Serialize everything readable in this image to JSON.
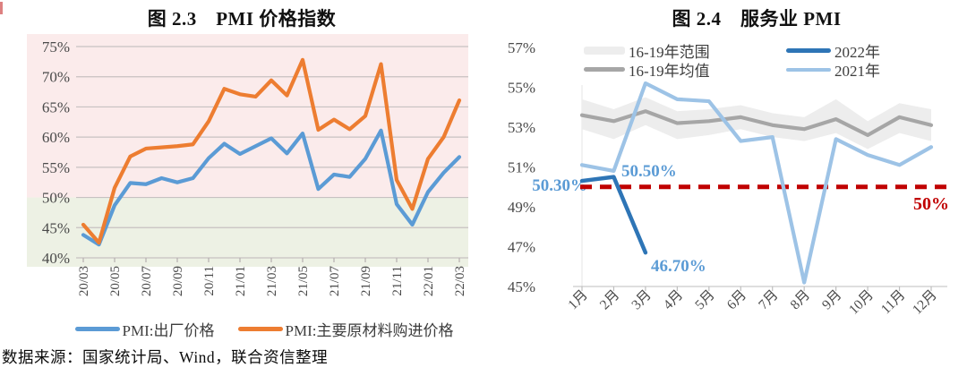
{
  "page": {
    "source": "数据来源：国家统计局、Wind，联合资信整理"
  },
  "chart_data": [
    {
      "type": "line",
      "title": "图 2.3　PMI 价格指数",
      "categories": [
        "20/03",
        "20/04",
        "20/05",
        "20/06",
        "20/07",
        "20/08",
        "20/09",
        "20/10",
        "20/11",
        "20/12",
        "21/01",
        "21/02",
        "21/03",
        "21/04",
        "21/05",
        "21/06",
        "21/07",
        "21/08",
        "21/09",
        "21/10",
        "21/11",
        "21/12",
        "22/01",
        "22/02",
        "22/03"
      ],
      "x_tick_labels": [
        "20/03",
        "20/05",
        "20/07",
        "20/09",
        "20/11",
        "21/01",
        "21/03",
        "21/05",
        "21/07",
        "21/09",
        "21/11",
        "22/01",
        "22/03"
      ],
      "y_ticks": [
        "75%",
        "70%",
        "65%",
        "60%",
        "55%",
        "50%",
        "45%",
        "40%"
      ],
      "ylim": [
        40,
        75
      ],
      "y_tick_step": 5,
      "grid": true,
      "legend_position": "bottom",
      "plot_bands": [
        {
          "from": 50,
          "to": 75,
          "color": "#FBEBEB"
        },
        {
          "from": 40,
          "to": 50,
          "color": "#EDF1E4"
        }
      ],
      "series": [
        {
          "name": "PMI:出厂价格",
          "color": "#5B9BD5",
          "values": [
            43.8,
            42.2,
            48.7,
            52.4,
            52.2,
            53.2,
            52.5,
            53.2,
            56.5,
            58.9,
            57.2,
            58.5,
            59.8,
            57.3,
            60.6,
            51.4,
            53.8,
            53.4,
            56.4,
            61.1,
            48.9,
            45.5,
            50.9,
            54.1,
            56.7
          ]
        },
        {
          "name": "PMI:主要原材料购进价格",
          "color": "#ED7D31",
          "values": [
            45.5,
            42.5,
            51.6,
            56.8,
            58.1,
            58.3,
            58.5,
            58.8,
            62.6,
            68.0,
            67.1,
            66.7,
            69.4,
            66.9,
            72.8,
            61.2,
            62.9,
            61.3,
            63.5,
            72.1,
            52.9,
            48.1,
            56.4,
            60.0,
            66.1
          ]
        }
      ]
    },
    {
      "type": "line",
      "title": "图 2.4　服务业 PMI",
      "categories": [
        "1月",
        "2月",
        "3月",
        "4月",
        "5月",
        "6月",
        "7月",
        "8月",
        "9月",
        "10月",
        "11月",
        "12月"
      ],
      "y_ticks": [
        "57%",
        "55%",
        "53%",
        "51%",
        "49%",
        "47%",
        "45%"
      ],
      "ylim": [
        45,
        57
      ],
      "y_tick_step": 2,
      "grid": false,
      "legend_position": "top-inside",
      "series": [
        {
          "name": "16-19年范围",
          "type": "band",
          "color": "#EDEDED",
          "upper": [
            54.4,
            53.9,
            54.5,
            53.8,
            53.9,
            54.1,
            53.7,
            53.5,
            54.4,
            53.3,
            54.2,
            53.9
          ],
          "lower": [
            52.9,
            52.4,
            53.1,
            52.4,
            52.6,
            52.9,
            52.5,
            52.3,
            52.7,
            51.9,
            52.7,
            52.3
          ]
        },
        {
          "name": "16-19年均值",
          "color": "#A6A6A6",
          "values": [
            53.6,
            53.3,
            53.8,
            53.2,
            53.3,
            53.5,
            53.1,
            52.9,
            53.4,
            52.6,
            53.5,
            53.1
          ]
        },
        {
          "name": "2022年",
          "color": "#2E75B6",
          "values": [
            50.3,
            50.5,
            46.7
          ]
        },
        {
          "name": "2021年",
          "color": "#9DC3E6",
          "values": [
            51.1,
            50.8,
            55.2,
            54.4,
            54.3,
            52.3,
            52.5,
            45.2,
            52.4,
            51.6,
            51.1,
            52.0
          ]
        }
      ],
      "reference_line": {
        "value": 50,
        "label": "50%",
        "color": "#C00000",
        "style": "dashed"
      },
      "annotations": [
        {
          "text": "50.30%",
          "color": "#5B9BD5",
          "series": "2022年",
          "month": "1月",
          "value": 50.3
        },
        {
          "text": "50.50%",
          "color": "#5B9BD5",
          "series": "2022年",
          "month": "2月",
          "value": 50.5
        },
        {
          "text": "46.70%",
          "color": "#5B9BD5",
          "series": "2022年",
          "month": "3月",
          "value": 46.7
        }
      ]
    }
  ]
}
